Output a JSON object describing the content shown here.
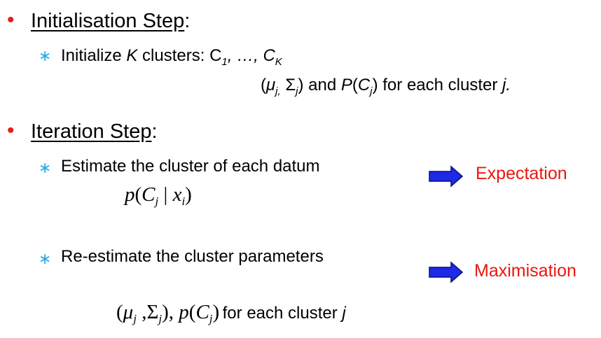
{
  "colors": {
    "bullet": "#e0201c",
    "sub_bullet": "#29abe2",
    "arrow": "#1e2ae6",
    "label": "#e8170f"
  },
  "sections": [
    {
      "bullet_icon": "red-dot-bullet",
      "heading": "Initialisation Step",
      "colon": ":",
      "items": [
        {
          "bullet_icon": "blue-asterisk-bullet",
          "parts": {
            "text1": "Initialize ",
            "K": "K",
            "text2": " clusters: C",
            "sub1": "1",
            "sep": ", …, ",
            "C": "C",
            "subK": "K"
          },
          "line2": {
            "open": "(",
            "mu": "μ",
            "mu_sub": "j,",
            "sigma": " Σ",
            "sigma_sub": "j",
            "close": ") and ",
            "P": "P",
            "paren_open": "(",
            "C": "C",
            "C_sub": "j",
            "paren_close": ")",
            "tail": " for each cluster ",
            "j": "j."
          }
        }
      ]
    },
    {
      "bullet_icon": "red-dot-bullet",
      "heading": "Iteration Step",
      "colon": ":",
      "items": [
        {
          "bullet_icon": "blue-asterisk-bullet",
          "text": "Estimate the cluster of each datum",
          "formula": {
            "p": "p",
            "open": "(",
            "C": "C",
            "j": "j",
            "bar": " | ",
            "x": "x",
            "i": "i",
            "close": ")"
          },
          "arrow_icon": "right-arrow-icon",
          "label": "Expectation"
        },
        {
          "bullet_icon": "blue-asterisk-bullet",
          "text": "Re-estimate the cluster parameters",
          "formula": {
            "open": "(",
            "mu": "μ",
            "mu_sub": "j",
            "comma": " ,",
            "sigma": "Σ",
            "sigma_sub": "j",
            "close_p": "), ",
            "p": "p",
            "p_open": "(",
            "C": "C",
            "C_sub": "j",
            "p_close": ")"
          },
          "tail_text": "for each cluster ",
          "tail_j": "j",
          "arrow_icon": "right-arrow-icon",
          "label": "Maximisation"
        }
      ]
    }
  ]
}
